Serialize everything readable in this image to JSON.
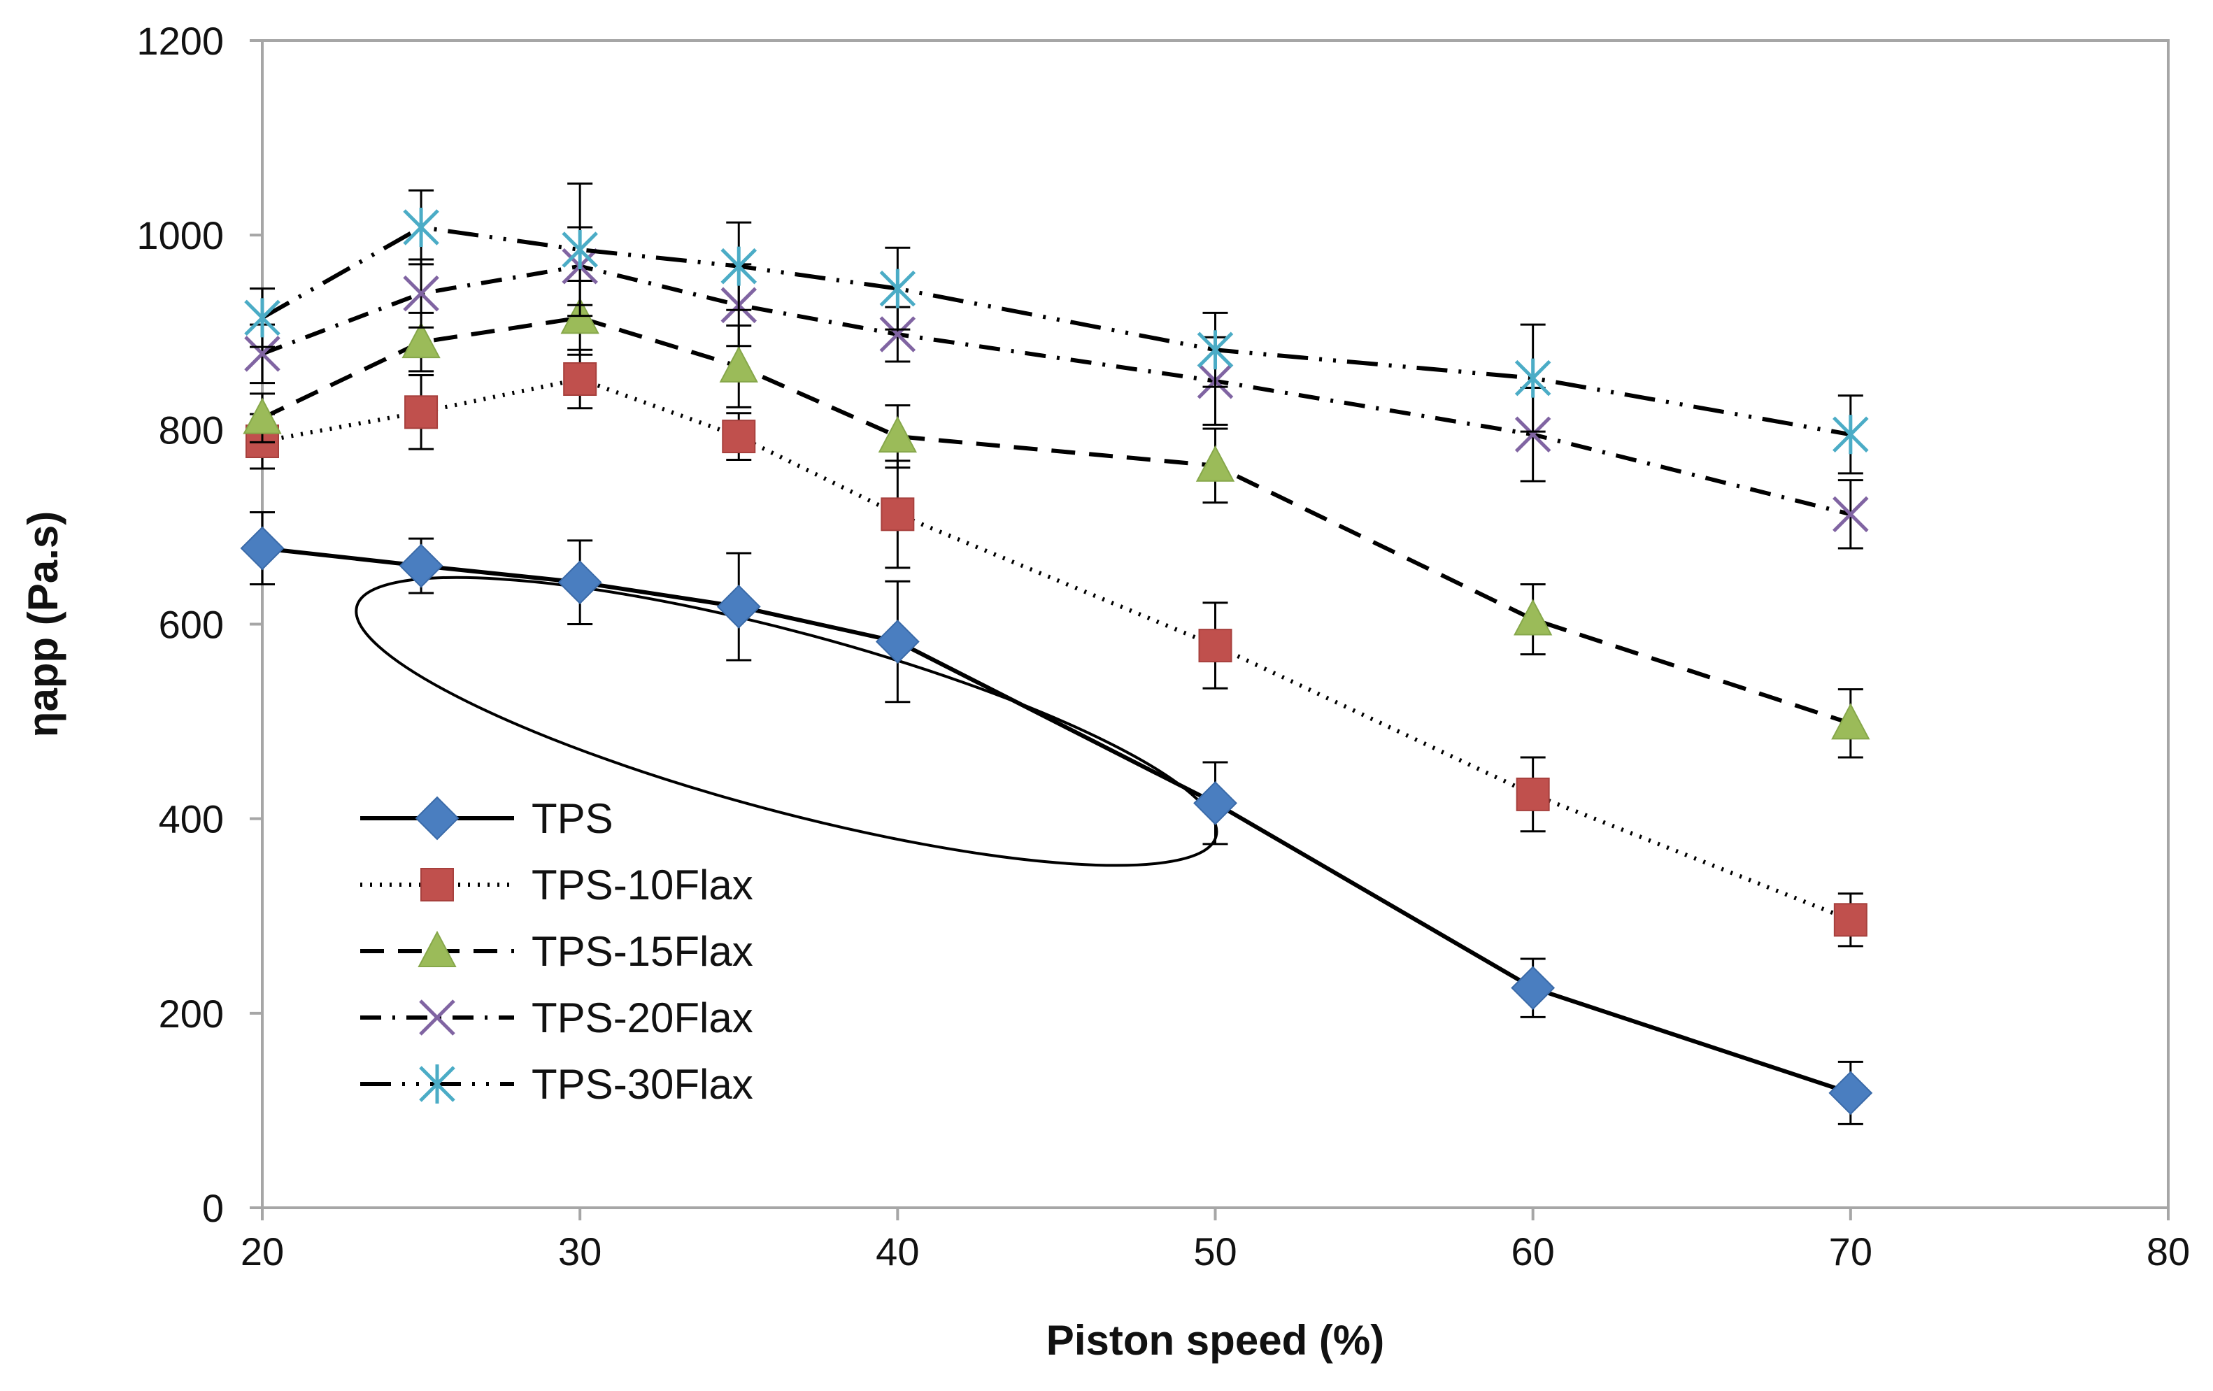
{
  "chart_data": {
    "type": "line",
    "title": "",
    "xlabel": "Piston speed (%)",
    "ylabel": "ηapp (Pa.s)",
    "xlim": [
      20,
      80
    ],
    "ylim": [
      0,
      1200
    ],
    "xticks": [
      "20",
      "30",
      "40",
      "50",
      "60",
      "70",
      "80"
    ],
    "yticks": [
      "0",
      "200",
      "400",
      "600",
      "800",
      "1000",
      "1200"
    ],
    "grid": false,
    "legend_position": "bottom-left",
    "series": [
      {
        "name": "TPS",
        "marker": "diamond",
        "color": "#4a7ec0",
        "line_style": "solid",
        "x": [
          20,
          25,
          30,
          35,
          40,
          50,
          60,
          70
        ],
        "values": [
          678,
          660,
          643,
          618,
          582,
          416,
          226,
          118
        ],
        "errors": [
          37,
          28,
          43,
          55,
          62,
          42,
          30,
          32
        ]
      },
      {
        "name": "TPS-10Flax",
        "marker": "square",
        "color": "#c0504d",
        "line_style": "dotted",
        "x": [
          20,
          25,
          30,
          35,
          40,
          50,
          60,
          70
        ],
        "values": [
          788,
          818,
          852,
          793,
          713,
          578,
          425,
          296
        ],
        "errors": [
          28,
          38,
          30,
          24,
          55,
          44,
          38,
          27
        ]
      },
      {
        "name": "TPS-15Flax",
        "marker": "triangle",
        "color": "#9bbb59",
        "line_style": "dashed",
        "x": [
          20,
          25,
          30,
          35,
          40,
          50,
          60,
          70
        ],
        "values": [
          812,
          890,
          915,
          865,
          793,
          763,
          605,
          498
        ],
        "errors": [
          25,
          30,
          38,
          42,
          32,
          38,
          36,
          35
        ]
      },
      {
        "name": "TPS-20Flax",
        "marker": "x",
        "color": "#8064a2",
        "line_style": "dash-dot",
        "x": [
          20,
          25,
          30,
          35,
          40,
          50,
          60,
          70
        ],
        "values": [
          878,
          940,
          968,
          928,
          898,
          850,
          795,
          713
        ],
        "errors": [
          30,
          35,
          40,
          42,
          28,
          45,
          48,
          35
        ]
      },
      {
        "name": "TPS-30Flax",
        "marker": "asterisk",
        "color": "#4bacc6",
        "line_style": "dash-dot-dot",
        "x": [
          20,
          25,
          30,
          35,
          40,
          50,
          60,
          70
        ],
        "values": [
          915,
          1008,
          985,
          968,
          945,
          882,
          853,
          795
        ],
        "errors": [
          30,
          38,
          68,
          45,
          42,
          38,
          55,
          40
        ]
      }
    ],
    "annotations": [
      {
        "type": "ellipse",
        "x_center": 36.5,
        "y_center": 500,
        "x_radius": 14.0,
        "y_radius": 92,
        "rotation_degrees": 15
      }
    ]
  }
}
